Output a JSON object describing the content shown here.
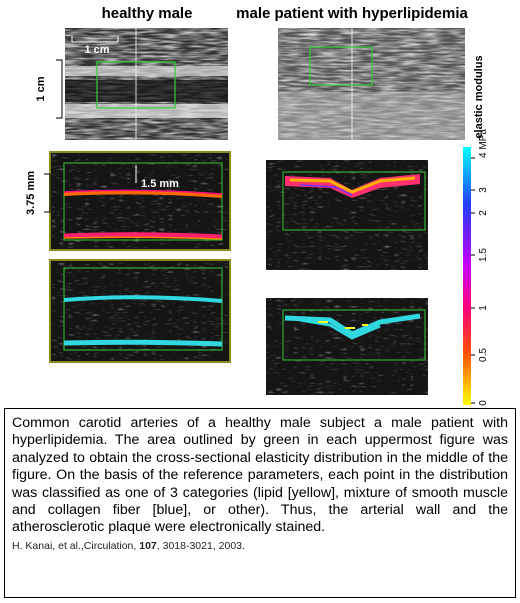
{
  "figure": {
    "left_title": "healthy male",
    "right_title": "male patient with hyperlipidemia",
    "scale_horizontal": "1 cm",
    "scale_vertical": "1 cm",
    "scale_thickness": "3.75 mm",
    "scale_depth": "1.5 mm",
    "colorbar": {
      "label": "elastic modulus",
      "ticks": [
        "4 MPa",
        "3",
        "2",
        "1.5",
        "1",
        "0.5",
        "0"
      ]
    }
  },
  "caption": {
    "text": "Common carotid arteries of a healthy male subject a male patient with hyperlipidemia.  The area outlined by green in each uppermost figure was analyzed to obtain the cross-sectional elasticity distribution in the middle of the figure. On the basis of the reference parameters, each point in the distribution was classified as one of 3 categories (lipid [yellow], mixture of smooth muscle and collagen fiber [blue], or other). Thus, the arterial wall and the atherosclerotic plaque were electronically stained.",
    "citation_authors": "H. Kanai, et al.,Circulation, ",
    "citation_volume": "107",
    "citation_rest": ", 3018-3021, 2003."
  }
}
